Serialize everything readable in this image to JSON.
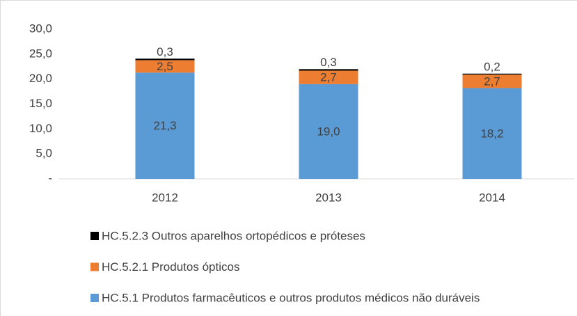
{
  "chart_data": {
    "type": "stacked_bar",
    "categories": [
      "2012",
      "2013",
      "2014"
    ],
    "series": [
      {
        "name": "HC.5.1 Produtos farmacêuticos e outros produtos médicos não duráveis",
        "color": "#5b9bd5",
        "values": [
          21.3,
          19.0,
          18.2
        ],
        "value_labels": [
          "21,3",
          "19,0",
          "18,2"
        ]
      },
      {
        "name": "HC.5.2.1 Produtos ópticos",
        "color": "#ed7d31",
        "values": [
          2.5,
          2.7,
          2.7
        ],
        "value_labels": [
          "2,5",
          "2,7",
          "2,7"
        ]
      },
      {
        "name": "HC.5.2.3 Outros aparelhos ortopédicos e próteses",
        "color": "#000000",
        "values": [
          0.3,
          0.3,
          0.2
        ],
        "value_labels": [
          "0,3",
          "0,3",
          "0,2"
        ]
      }
    ],
    "ylim": [
      0,
      30
    ],
    "yticks": [
      {
        "value": 0,
        "label": "-"
      },
      {
        "value": 5,
        "label": "5,0"
      },
      {
        "value": 10,
        "label": "10,0"
      },
      {
        "value": 15,
        "label": "15,0"
      },
      {
        "value": 20,
        "label": "20,0"
      },
      {
        "value": 25,
        "label": "25,0"
      },
      {
        "value": 30,
        "label": "30,0"
      }
    ]
  }
}
